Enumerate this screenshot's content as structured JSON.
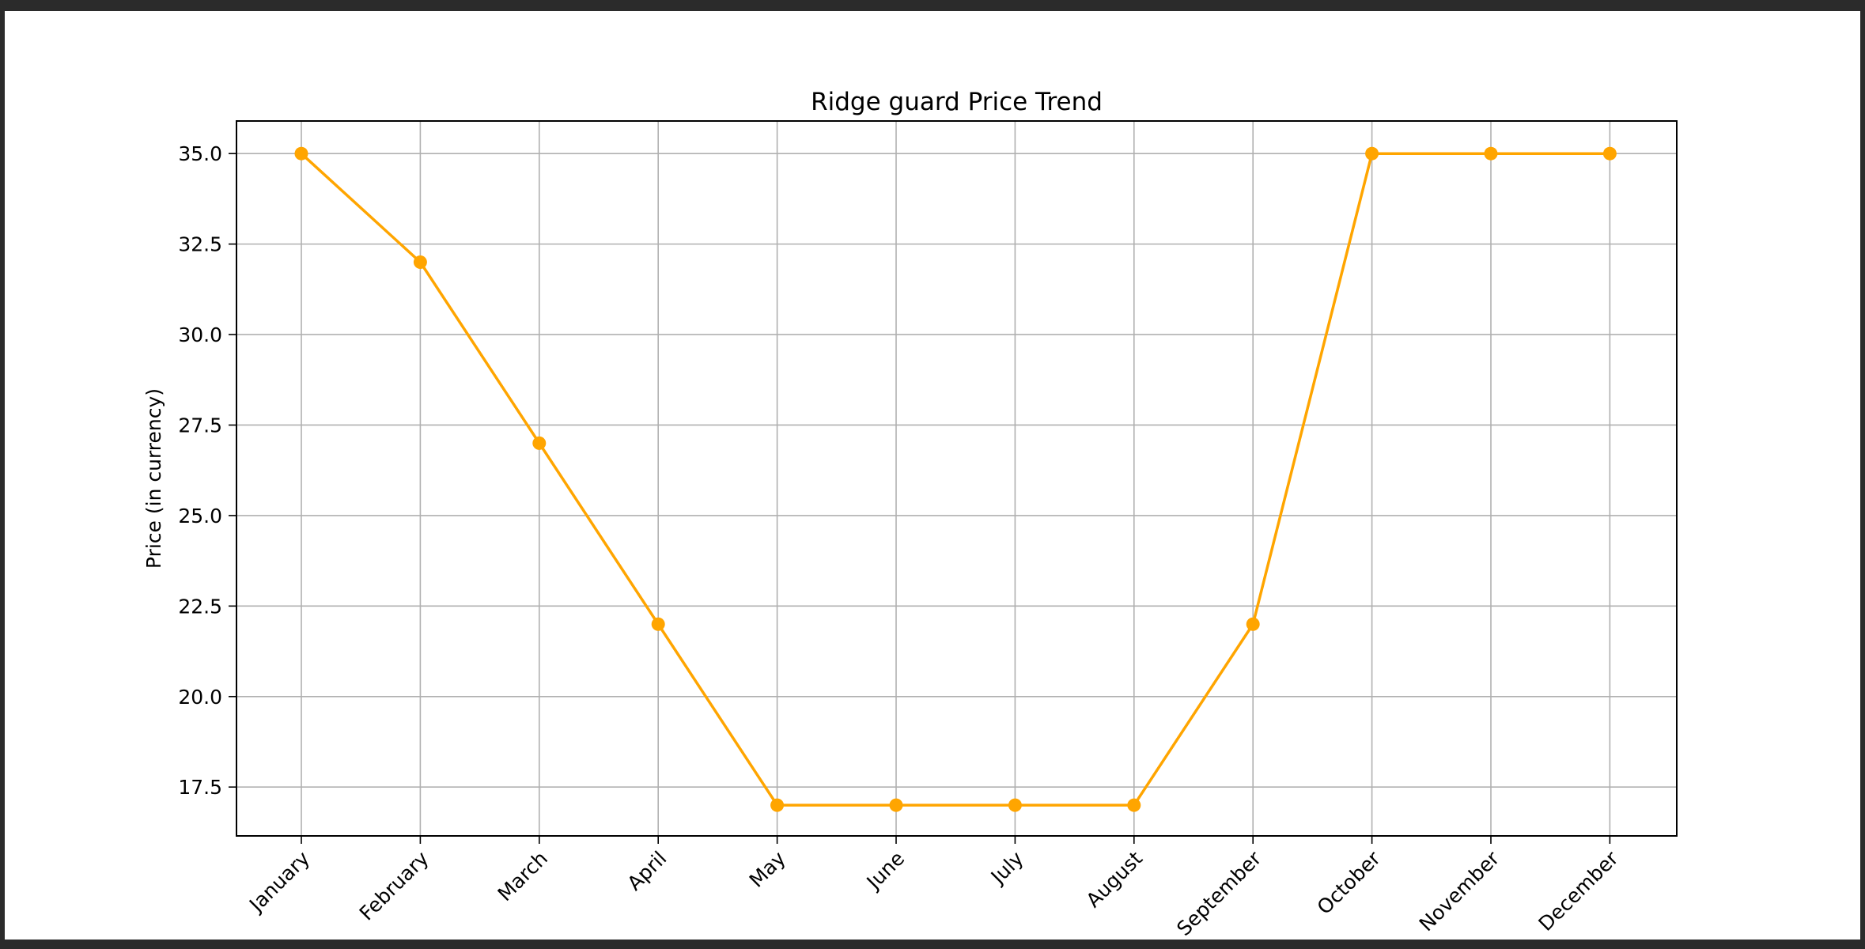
{
  "chart_data": {
    "type": "line",
    "title": "Ridge guard Price Trend",
    "xlabel": "",
    "ylabel": "Price (in currency)",
    "categories": [
      "January",
      "February",
      "March",
      "April",
      "May",
      "June",
      "July",
      "August",
      "September",
      "October",
      "November",
      "December"
    ],
    "series": [
      {
        "values": [
          35,
          32,
          27,
          22,
          17,
          17,
          17,
          17,
          22,
          35,
          35,
          35
        ],
        "color": "#FFA500"
      }
    ],
    "yticks": [
      "17.5",
      "20.0",
      "22.5",
      "25.0",
      "27.5",
      "30.0",
      "32.5",
      "35.0"
    ],
    "ylim": [
      16.15,
      35.9
    ],
    "grid": true,
    "legend": "none",
    "marker": "circle"
  }
}
